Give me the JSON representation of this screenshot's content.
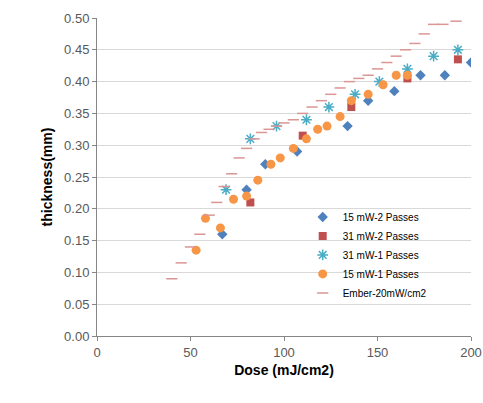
{
  "chart_data": {
    "type": "scatter",
    "x_label": "Dose (mJ/cm2)",
    "y_label": "thickness(mm)",
    "xlim": [
      0,
      200
    ],
    "xticks": [
      0,
      50,
      100,
      150,
      200
    ],
    "ylim": [
      0,
      0.5
    ],
    "yticks": [
      {
        "value": 0,
        "label": "0.00"
      },
      {
        "value": 0.05,
        "label": "0.05"
      },
      {
        "value": 0.1,
        "label": "0.10"
      },
      {
        "value": 0.15,
        "label": "0.15"
      },
      {
        "value": 0.2,
        "label": "0.20"
      },
      {
        "value": 0.25,
        "label": "0.25"
      },
      {
        "value": 0.3,
        "label": "0.30"
      },
      {
        "value": 0.35,
        "label": "0.35"
      },
      {
        "value": 0.4,
        "label": "0.40"
      },
      {
        "value": 0.45,
        "label": "0.45"
      },
      {
        "value": 0.5,
        "label": "0.50"
      }
    ],
    "grid": true,
    "legend": "lower right",
    "series": [
      {
        "name": "15 mW-2 Passes",
        "color": "#4F81BD",
        "marker": "diamond",
        "x": [
          67,
          80,
          90,
          107,
          134,
          145,
          159,
          173,
          186,
          200
        ],
        "values": [
          0.16,
          0.23,
          0.27,
          0.29,
          0.33,
          0.37,
          0.385,
          0.41,
          0.41,
          0.43
        ]
      },
      {
        "name": "31 mW-2 Passes",
        "color": "#C0504D",
        "marker": "square",
        "x": [
          82,
          110,
          136,
          166,
          193
        ],
        "values": [
          0.21,
          0.315,
          0.36,
          0.405,
          0.435
        ]
      },
      {
        "name": "31 mW-1 Passes",
        "color": "#4BACC6",
        "marker": "asterisk",
        "x": [
          69,
          82,
          96,
          112,
          124,
          138,
          151,
          166,
          180,
          193
        ],
        "values": [
          0.23,
          0.31,
          0.33,
          0.34,
          0.36,
          0.38,
          0.4,
          0.42,
          0.44,
          0.45
        ]
      },
      {
        "name": "15 mW-1 Passes",
        "color": "#F79646",
        "marker": "circle",
        "x": [
          53,
          58,
          66,
          73,
          80,
          86,
          93,
          98,
          105,
          112,
          118,
          123,
          130,
          136,
          145,
          153,
          160,
          166
        ],
        "values": [
          0.135,
          0.185,
          0.17,
          0.215,
          0.22,
          0.245,
          0.27,
          0.28,
          0.295,
          0.31,
          0.325,
          0.33,
          0.345,
          0.37,
          0.38,
          0.395,
          0.41,
          0.41
        ]
      },
      {
        "name": "Ember-20mW/cm2",
        "color": "#D99694",
        "marker": "dash",
        "x": [
          40,
          45,
          50,
          55,
          60,
          64,
          68,
          72,
          76,
          80,
          84,
          88,
          92,
          96,
          100,
          105,
          110,
          115,
          120,
          125,
          130,
          135,
          140,
          145,
          150,
          155,
          160,
          165,
          170,
          175,
          180,
          185,
          192
        ],
        "values": [
          0.09,
          0.115,
          0.14,
          0.16,
          0.19,
          0.21,
          0.235,
          0.255,
          0.28,
          0.295,
          0.31,
          0.32,
          0.325,
          0.33,
          0.335,
          0.34,
          0.35,
          0.36,
          0.37,
          0.38,
          0.39,
          0.4,
          0.405,
          0.41,
          0.42,
          0.43,
          0.44,
          0.45,
          0.46,
          0.475,
          0.49,
          0.49,
          0.495
        ]
      }
    ]
  }
}
